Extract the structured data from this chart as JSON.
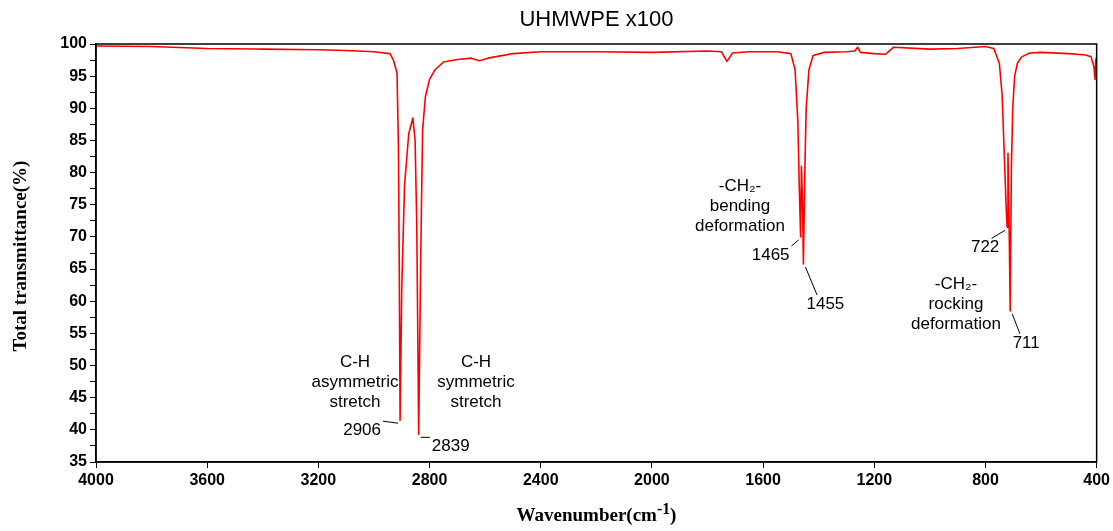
{
  "chart_data": {
    "type": "line",
    "title": "UHMWPE x100",
    "xlabel": "Wavenumber(cm$^{-1}$)",
    "ylabel": "Total transmittance(%)",
    "xlim": [
      4000,
      400
    ],
    "xticks": [
      4000,
      3600,
      3200,
      2800,
      2400,
      2000,
      1600,
      1200,
      800,
      400
    ],
    "ylim": [
      35,
      100
    ],
    "yticks": [
      35,
      {
        "value": 37.5,
        "label": null
      },
      40,
      {
        "value": 42.5,
        "label": null
      },
      45,
      {
        "value": 47.5,
        "label": null
      },
      50,
      {
        "value": 52.5,
        "label": null
      },
      55,
      {
        "value": 57.5,
        "label": null
      },
      60,
      {
        "value": 62.5,
        "label": null
      },
      65,
      {
        "value": 67.5,
        "label": null
      },
      70,
      {
        "value": 72.5,
        "label": null
      },
      75,
      {
        "value": 77.5,
        "label": null
      },
      80,
      {
        "value": 82.5,
        "label": null
      },
      85,
      {
        "value": 87.5,
        "label": null
      },
      90,
      {
        "value": 92.5,
        "label": null
      },
      95,
      {
        "value": 97.5,
        "label": null
      },
      100
    ],
    "grid": false,
    "legend": false,
    "marker": "none",
    "line_style": "solid",
    "series": [
      {
        "color": "#ff0000",
        "x": [
          4000,
          3800,
          3600,
          3400,
          3200,
          3100,
          3000,
          2942,
          2930,
          2917,
          2912,
          2909,
          2906,
          2900,
          2890,
          2875,
          2860,
          2852,
          2846,
          2839,
          2832,
          2825,
          2815,
          2800,
          2780,
          2750,
          2700,
          2650,
          2620,
          2590,
          2500,
          2400,
          2200,
          2000,
          1800,
          1750,
          1730,
          1710,
          1650,
          1550,
          1500,
          1485,
          1475,
          1470,
          1465,
          1462,
          1458,
          1455,
          1450,
          1445,
          1435,
          1420,
          1380,
          1300,
          1270,
          1260,
          1250,
          1200,
          1160,
          1130,
          1000,
          900,
          800,
          770,
          750,
          740,
          730,
          725,
          722,
          719,
          715,
          711,
          707,
          702,
          695,
          685,
          670,
          640,
          600,
          500,
          440,
          420,
          410,
          406,
          403,
          400
        ],
        "values": [
          99.7,
          99.6,
          99.3,
          99.2,
          99.1,
          99.0,
          98.8,
          98.5,
          97.5,
          95.5,
          84,
          66,
          41.5,
          62,
          78,
          86,
          88.5,
          85,
          72,
          39.3,
          66,
          86.6,
          91.8,
          94.5,
          96,
          97.2,
          97.6,
          97.8,
          97.4,
          97.8,
          98.5,
          98.8,
          98.8,
          98.7,
          98.9,
          98.8,
          97.3,
          98.6,
          98.8,
          98.8,
          98.5,
          96,
          88,
          78,
          70,
          81,
          75,
          65.8,
          80,
          90,
          96,
          98.2,
          98.7,
          98.8,
          98.9,
          99.5,
          98.7,
          98.5,
          98.4,
          99.5,
          99.2,
          99.3,
          99.6,
          99.3,
          97,
          92,
          80,
          74,
          71.5,
          83,
          72,
          58.5,
          80,
          90,
          95,
          97,
          98,
          98.6,
          98.7,
          98.5,
          98.3,
          98,
          96.5,
          94.5,
          97.5,
          98
        ]
      }
    ],
    "annotations": [
      "C-H asymmetric stretch",
      "C-H symmetric stretch",
      "-CH₂- bending deformation",
      "-CH₂- rocking deformation",
      {
        "text": "2906",
        "x": 2906,
        "y": 41.5
      },
      {
        "text": "2839",
        "x": 2839,
        "y": 39.3
      },
      {
        "text": "1465",
        "x": 1465,
        "y": 70
      },
      {
        "text": "1455",
        "x": 1455,
        "y": 65.8
      },
      {
        "text": "722",
        "x": 722,
        "y": 71.5
      },
      {
        "text": "711",
        "x": 711,
        "y": 58.5
      }
    ]
  }
}
